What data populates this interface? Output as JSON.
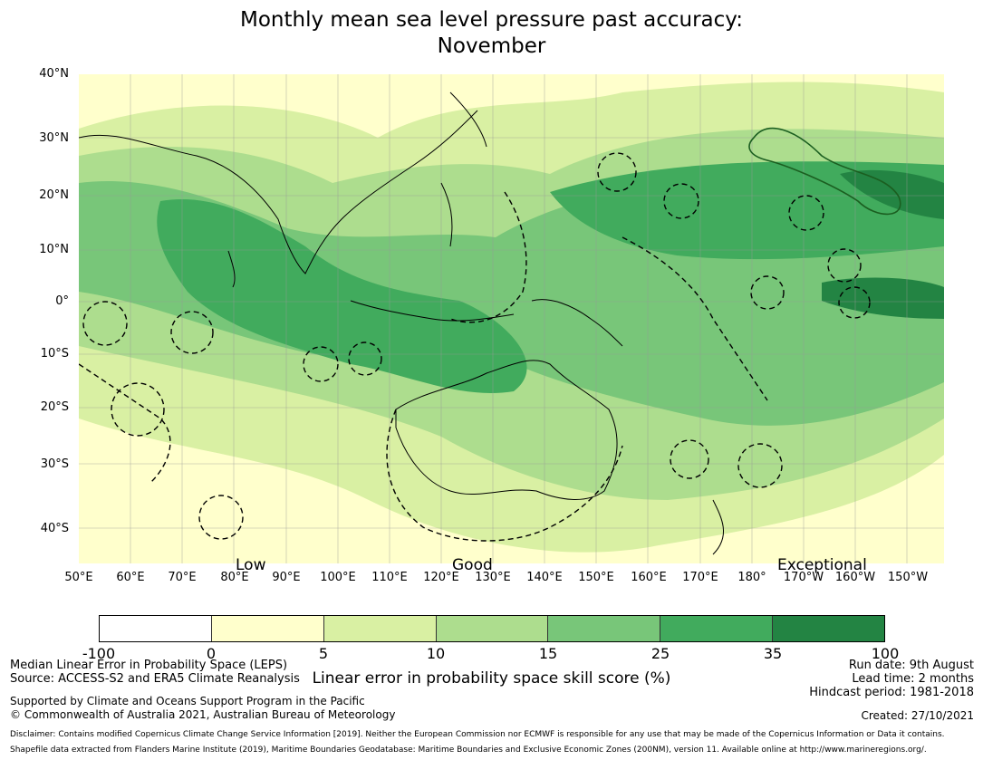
{
  "title": {
    "line1": "Monthly mean sea level pressure past accuracy:",
    "line2": "November"
  },
  "map": {
    "lat_labels": [
      "40°N",
      "30°N",
      "20°N",
      "10°N",
      "0°",
      "10°S",
      "20°S",
      "30°S",
      "40°S"
    ],
    "lon_labels": [
      "50°E",
      "60°E",
      "70°E",
      "80°E",
      "90°E",
      "100°E",
      "110°E",
      "120°E",
      "130°E",
      "140°E",
      "150°E",
      "160°E",
      "170°E",
      "180°",
      "170°W",
      "160°W",
      "150°W"
    ],
    "words": [
      "Low",
      "Good",
      "Exceptional"
    ],
    "colors": {
      "background": "#ffffcc",
      "light_green": "#d9f0a3",
      "mid_green": "#addd8e",
      "green": "#78c679",
      "dark_green": "#41ab5d",
      "darkest_green": "#238443",
      "land": "#000000"
    }
  },
  "colorbar": {
    "ticks": [
      "-100",
      "0",
      "5",
      "10",
      "15",
      "25",
      "35",
      "100"
    ],
    "colors": [
      "#ffffff",
      "#ffffcc",
      "#d9f0a3",
      "#addd8e",
      "#78c679",
      "#41ab5d",
      "#238443"
    ],
    "label": "Linear error in probability space skill score (%)"
  },
  "footer": {
    "left1": "Median Linear Error in Probability Space (LEPS)",
    "left2": "Source: ACCESS-S2 and ERA5 Climate Reanalysis",
    "left3": "Supported by Climate and Oceans Support Program in the Pacific",
    "left4": "© Commonwealth of Australia 2021, Australian Bureau of Meteorology",
    "right1": "Run date: 9th August",
    "right2": "Lead time: 2 months",
    "right3": "Hindcast period: 1981-2018",
    "created": "Created: 27/10/2021",
    "disclaimer1": "Disclaimer: Contains modified Copernicus Climate Change Service Information [2019]. Neither the European Commission nor ECMWF is responsible for any use that may be made of the Copernicus Information or Data it contains.",
    "disclaimer2": "Shapefile data extracted from Flanders Marine Institute (2019), Maritime Boundaries Geodatabase: Maritime Boundaries and Exclusive Economic Zones (200NM), version 11. Available online at http://www.marineregions.org/."
  }
}
